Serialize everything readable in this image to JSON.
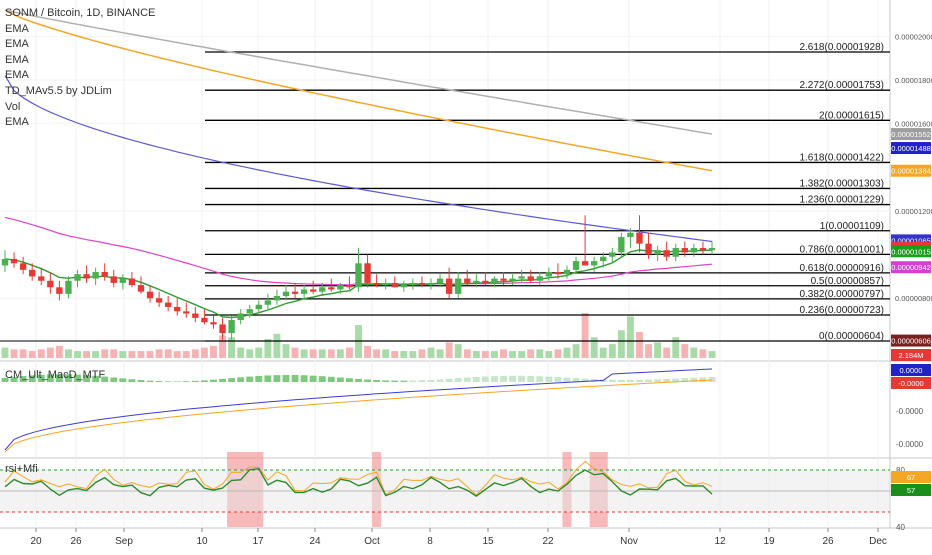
{
  "header": {
    "title": "SONM / Bitcoin, 1D, BINANCE",
    "indicators": [
      "EMA",
      "EMA",
      "EMA",
      "EMA",
      "TD_MAv5.5 by JDLim",
      "Vol",
      "EMA"
    ]
  },
  "panes": {
    "macd_label": "CM_Ult_MacD_MTF",
    "rsi_label": "rsi+Mfi"
  },
  "colors": {
    "up": "#4caf50",
    "down": "#e53935",
    "ema_gray": "#b0b0b0",
    "ema_orange": "#f5a623",
    "ema_blue": "#5b5bd6",
    "ema_pink": "#e040c8",
    "ema_green": "#2e9b2e",
    "vol_up": "#a8dba8",
    "vol_down": "#f5b3b3",
    "fib_line": "#000000",
    "rsi_green": "#2e8b2e",
    "mfi_orange": "#f5a623",
    "rsi_band": "#f28b8b"
  },
  "chart_data": {
    "type": "candlestick",
    "symbol": "SONM / Bitcoin",
    "interval": "1D",
    "exchange": "BINANCE",
    "x_ticks": [
      "20",
      "26",
      "Sep",
      "10",
      "17",
      "24",
      "Oct",
      "8",
      "15",
      "22",
      "Nov",
      "12",
      "19",
      "26",
      "Dec"
    ],
    "fib_levels": [
      {
        "ratio": "2.618",
        "value": 1.928e-05,
        "label": "2.618(0.00001928)"
      },
      {
        "ratio": "2.272",
        "value": 1.753e-05,
        "label": "2.272(0.00001753)"
      },
      {
        "ratio": "2",
        "value": 1.615e-05,
        "label": "2(0.00001615)"
      },
      {
        "ratio": "1.618",
        "value": 1.422e-05,
        "label": "1.618(0.00001422)"
      },
      {
        "ratio": "1.382",
        "value": 1.303e-05,
        "label": "1.382(0.00001303)"
      },
      {
        "ratio": "1.236",
        "value": 1.229e-05,
        "label": "1.236(0.00001229)"
      },
      {
        "ratio": "1",
        "value": 1.109e-05,
        "label": "1(0.00001109)"
      },
      {
        "ratio": "0.786",
        "value": 1.001e-05,
        "label": "0.786(0.00001001)"
      },
      {
        "ratio": "0.618",
        "value": 9.16e-06,
        "label": "0.618(0.00000916)"
      },
      {
        "ratio": "0.5",
        "value": 8.57e-06,
        "label": "0.5(0.00000857)"
      },
      {
        "ratio": "0.382",
        "value": 7.97e-06,
        "label": "0.382(0.00000797)"
      },
      {
        "ratio": "0.236",
        "value": 7.23e-06,
        "label": "0.236(0.00000723)"
      },
      {
        "ratio": "0",
        "value": 6.04e-06,
        "label": "0(0.00000604)"
      }
    ],
    "price_axis_ticks": [
      {
        "value": 2e-05,
        "label": "0.00002000"
      },
      {
        "value": 1.8e-05,
        "label": "0.00001800"
      },
      {
        "value": 1.6e-05,
        "label": "0.00001600"
      },
      {
        "value": 1.2e-05,
        "label": "0.00001200"
      },
      {
        "value": 8e-06,
        "label": "0.00000800"
      }
    ],
    "price_badges": [
      {
        "value": 1.552e-05,
        "label": "0.00001552",
        "color": "#9e9e9e"
      },
      {
        "value": 1.488e-05,
        "label": "0.00001488",
        "color": "#2222cc"
      },
      {
        "value": 1.384e-05,
        "label": "0.00001384",
        "color": "#f5a623"
      },
      {
        "value": 1.065e-05,
        "label": "0.00001065",
        "color": "#3333cc"
      },
      {
        "value": 1.031e-05,
        "label": "0.00001031",
        "color": "#e53935"
      },
      {
        "value": 1.015e-05,
        "label": "0.00001015",
        "color": "#1b9e1b"
      },
      {
        "value": 9.42e-06,
        "label": "0.00000942",
        "color": "#d63fd6"
      },
      {
        "value": 6.06e-06,
        "label": "0.00000606",
        "color": "#7b1f1f"
      }
    ],
    "volume_badge": {
      "label": "2.184M",
      "color": "#e53935"
    },
    "macd_badges": [
      {
        "label": "0.0000",
        "color": "#2222cc"
      },
      {
        "label": "-0.0000",
        "color": "#e53935"
      }
    ],
    "macd_axis_ticks": [
      "-0.0000",
      "-0.0000"
    ],
    "rsi_axis_ticks": [
      "80",
      "40"
    ],
    "rsi_badges": [
      {
        "label": "67",
        "color": "#f5a623"
      },
      {
        "label": "57",
        "color": "#1b8e1b"
      }
    ],
    "candles": [
      [
        9.5e-06,
        1.02e-05,
        9.2e-06,
        9.8e-06
      ],
      [
        9.8e-06,
        1.01e-05,
        9.4e-06,
        9.6e-06
      ],
      [
        9.6e-06,
        9.9e-06,
        9.1e-06,
        9.3e-06
      ],
      [
        9.3e-06,
        9.6e-06,
        8.8e-06,
        9e-06
      ],
      [
        9e-06,
        9.4e-06,
        8.6e-06,
        8.8e-06
      ],
      [
        8.8e-06,
        9.2e-06,
        8.2e-06,
        8.5e-06
      ],
      [
        8.5e-06,
        8.8e-06,
        7.9e-06,
        8.2e-06
      ],
      [
        8.2e-06,
        9e-06,
        8e-06,
        8.8e-06
      ],
      [
        8.8e-06,
        9.3e-06,
        8.5e-06,
        9.1e-06
      ],
      [
        9.1e-06,
        9.5e-06,
        8.7e-06,
        8.9e-06
      ],
      [
        8.9e-06,
        9.4e-06,
        8.6e-06,
        9.2e-06
      ],
      [
        9.2e-06,
        9.6e-06,
        8.8e-06,
        9e-06
      ],
      [
        9e-06,
        9.3e-06,
        8.5e-06,
        8.7e-06
      ],
      [
        8.7e-06,
        9.1e-06,
        8.4e-06,
        8.9e-06
      ],
      [
        8.9e-06,
        9.2e-06,
        8.5e-06,
        8.6e-06
      ],
      [
        8.6e-06,
        9e-06,
        8.2e-06,
        8.3e-06
      ],
      [
        8.3e-06,
        8.6e-06,
        7.8e-06,
        8e-06
      ],
      [
        8e-06,
        8.3e-06,
        7.6e-06,
        7.8e-06
      ],
      [
        7.8e-06,
        8.1e-06,
        7.4e-06,
        7.6e-06
      ],
      [
        7.6e-06,
        8e-06,
        7.2e-06,
        7.4e-06
      ],
      [
        7.4e-06,
        7.8e-06,
        7.1e-06,
        7.3e-06
      ],
      [
        7.3e-06,
        7.6e-06,
        6.9e-06,
        7.1e-06
      ],
      [
        7.1e-06,
        7.5e-06,
        6.8e-06,
        6.9e-06
      ],
      [
        6.9e-06,
        7.2e-06,
        6.6e-06,
        6.8e-06
      ],
      [
        6.8e-06,
        7.1e-06,
        6.1e-06,
        6.4e-06
      ],
      [
        6.4e-06,
        7.2e-06,
        6.1e-06,
        7e-06
      ],
      [
        7e-06,
        7.5e-06,
        6.8e-06,
        7.3e-06
      ],
      [
        7.3e-06,
        7.7e-06,
        7.1e-06,
        7.5e-06
      ],
      [
        7.5e-06,
        7.9e-06,
        7.3e-06,
        7.7e-06
      ],
      [
        7.7e-06,
        8.2e-06,
        7.5e-06,
        7.9e-06
      ],
      [
        7.9e-06,
        8.4e-06,
        7.7e-06,
        8.1e-06
      ],
      [
        8.1e-06,
        8.6e-06,
        7.9e-06,
        8.3e-06
      ],
      [
        8.3e-06,
        8.7e-06,
        8e-06,
        8.2e-06
      ],
      [
        8.2e-06,
        8.6e-06,
        8e-06,
        8.4e-06
      ],
      [
        8.4e-06,
        8.8e-06,
        8.2e-06,
        8.3e-06
      ],
      [
        8.3e-06,
        8.7e-06,
        8.1e-06,
        8.5e-06
      ],
      [
        8.5e-06,
        8.9e-06,
        8.3e-06,
        8.4e-06
      ],
      [
        8.4e-06,
        8.7e-06,
        8.2e-06,
        8.6e-06
      ],
      [
        8.6e-06,
        9e-06,
        8.4e-06,
        8.5e-06
      ],
      [
        8.5e-06,
        1.03e-05,
        8.3e-06,
        9.6e-06
      ],
      [
        9.6e-06,
        1e-05,
        8.5e-06,
        8.7e-06
      ],
      [
        8.7e-06,
        9.1e-06,
        8.5e-06,
        8.6e-06
      ],
      [
        8.6e-06,
        8.9e-06,
        8.4e-06,
        8.7e-06
      ],
      [
        8.7e-06,
        9e-06,
        8.5e-06,
        8.5e-06
      ],
      [
        8.5e-06,
        8.8e-06,
        8.3e-06,
        8.6e-06
      ],
      [
        8.6e-06,
        8.9e-06,
        8.4e-06,
        8.7e-06
      ],
      [
        8.7e-06,
        9e-06,
        8.5e-06,
        8.6e-06
      ],
      [
        8.6e-06,
        8.9e-06,
        8.4e-06,
        8.7e-06
      ],
      [
        8.7e-06,
        9.1e-06,
        8.5e-06,
        8.9e-06
      ],
      [
        8.9e-06,
        9.4e-06,
        8e-06,
        8.2e-06
      ],
      [
        8.2e-06,
        9.2e-06,
        8e-06,
        8.9e-06
      ],
      [
        8.9e-06,
        9.3e-06,
        8.6e-06,
        8.7e-06
      ],
      [
        8.7e-06,
        9.1e-06,
        8.5e-06,
        8.8e-06
      ],
      [
        8.8e-06,
        9.2e-06,
        8.6e-06,
        8.7e-06
      ],
      [
        8.7e-06,
        9e-06,
        8.5e-06,
        8.9e-06
      ],
      [
        8.9e-06,
        9.2e-06,
        8.6e-06,
        8.8e-06
      ],
      [
        8.8e-06,
        9.1e-06,
        8.6e-06,
        8.9e-06
      ],
      [
        8.9e-06,
        9.3e-06,
        8.7e-06,
        9e-06
      ],
      [
        9e-06,
        9.3e-06,
        8.7e-06,
        8.8e-06
      ],
      [
        8.8e-06,
        9.2e-06,
        8.6e-06,
        9e-06
      ],
      [
        9e-06,
        9.4e-06,
        8.8e-06,
        9.2e-06
      ],
      [
        9.2e-06,
        9.6e-06,
        8.9e-06,
        9.1e-06
      ],
      [
        9.1e-06,
        9.5e-06,
        8.9e-06,
        9.3e-06
      ],
      [
        9.3e-06,
        9.9e-06,
        9.1e-06,
        9.7e-06
      ],
      [
        9.7e-06,
        1.18e-05,
        9.5e-06,
        9.5e-06
      ],
      [
        9.5e-06,
        9.9e-06,
        9.2e-06,
        9.7e-06
      ],
      [
        9.7e-06,
        1.01e-05,
        9.4e-06,
        9.9e-06
      ],
      [
        9.9e-06,
        1.03e-05,
        9.6e-06,
        1.01e-05
      ],
      [
        1.01e-05,
        1.1e-05,
        9.9e-06,
        1.08e-05
      ],
      [
        1.08e-05,
        1.12e-05,
        1.03e-05,
        1.1e-05
      ],
      [
        1.1e-05,
        1.18e-05,
        1.01e-05,
        1.05e-05
      ],
      [
        1.05e-05,
        1.1e-05,
        9.8e-06,
        1e-05
      ],
      [
        1e-05,
        1.04e-05,
        9.7e-06,
        1.02e-05
      ],
      [
        1.02e-05,
        1.06e-05,
        9.7e-06,
        9.9e-06
      ],
      [
        9.9e-06,
        1.05e-05,
        9.7e-06,
        1.03e-05
      ],
      [
        1.03e-05,
        1.06e-05,
        9.9e-06,
        1.01e-05
      ],
      [
        1.01e-05,
        1.05e-05,
        9.9e-06,
        1.03e-05
      ],
      [
        1.03e-05,
        1.06e-05,
        1e-05,
        1.02e-05
      ],
      [
        1.02e-05,
        1.06e-05,
        1e-05,
        1.03e-05
      ]
    ],
    "volumes": [
      0.6,
      0.5,
      0.5,
      0.4,
      0.5,
      0.6,
      0.7,
      0.5,
      0.4,
      0.4,
      0.4,
      0.5,
      0.5,
      0.4,
      0.4,
      0.4,
      0.4,
      0.5,
      0.5,
      0.4,
      0.4,
      0.5,
      0.6,
      0.7,
      1.3,
      1.2,
      0.6,
      0.5,
      0.6,
      1.1,
      1.4,
      0.8,
      0.6,
      0.5,
      0.5,
      0.5,
      0.5,
      0.5,
      0.6,
      1.9,
      0.7,
      0.5,
      0.5,
      0.4,
      0.4,
      0.4,
      0.5,
      0.6,
      0.5,
      0.9,
      0.8,
      0.5,
      0.4,
      0.4,
      0.4,
      0.5,
      0.4,
      0.4,
      0.5,
      0.5,
      0.4,
      0.5,
      0.6,
      0.8,
      2.6,
      1.2,
      0.6,
      0.8,
      1.6,
      2.4,
      1.5,
      0.8,
      0.9,
      0.6,
      1.2,
      0.8,
      0.6,
      0.5,
      0.4
    ],
    "rsi_highlights": [
      [
        25,
        28
      ],
      [
        41,
        41
      ],
      [
        62,
        62
      ],
      [
        65,
        66
      ]
    ]
  }
}
